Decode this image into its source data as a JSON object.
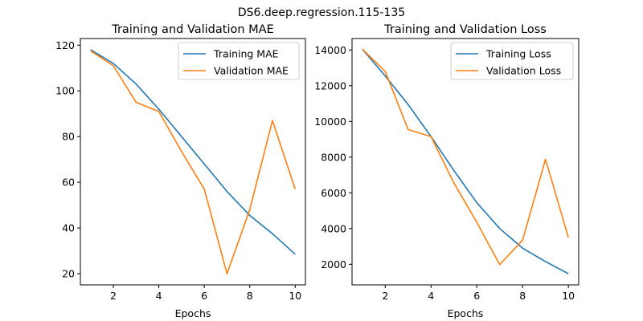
{
  "figure": {
    "suptitle": "DS6.deep.regression.115-135"
  },
  "colors": {
    "training": "#1f77b4",
    "validation": "#ff7f0e"
  },
  "chart_data": [
    {
      "type": "line",
      "title": "Training and Validation MAE",
      "xlabel": "Epochs",
      "ylabel": "",
      "x": [
        1,
        2,
        3,
        4,
        5,
        6,
        7,
        8,
        9,
        10
      ],
      "xlim": [
        0.55,
        10.45
      ],
      "ylim": [
        15.1,
        122.9
      ],
      "xticks": [
        2,
        4,
        6,
        8,
        10
      ],
      "yticks": [
        20,
        40,
        60,
        80,
        100,
        120
      ],
      "legend": "top-right",
      "grid": false,
      "series": [
        {
          "name": "Training MAE",
          "values": [
            118,
            112,
            103,
            92,
            80,
            68,
            56,
            45.5,
            37.5,
            28.5
          ]
        },
        {
          "name": "Validation MAE",
          "values": [
            117.5,
            111,
            95,
            91,
            73.5,
            57,
            20,
            48,
            87,
            57
          ]
        }
      ]
    },
    {
      "type": "line",
      "title": "Training and Validation Loss",
      "xlabel": "Epochs",
      "ylabel": "",
      "x": [
        1,
        2,
        3,
        4,
        5,
        6,
        7,
        8,
        9,
        10
      ],
      "xlim": [
        0.55,
        10.45
      ],
      "ylim": [
        845,
        14645
      ],
      "xticks": [
        2,
        4,
        6,
        8,
        10
      ],
      "yticks": [
        2000,
        4000,
        6000,
        8000,
        10000,
        12000,
        14000
      ],
      "legend": "top-right",
      "grid": false,
      "series": [
        {
          "name": "Training Loss",
          "values": [
            14050,
            12550,
            10950,
            9150,
            7250,
            5450,
            4000,
            2900,
            2150,
            1470
          ]
        },
        {
          "name": "Validation Loss",
          "values": [
            14050,
            12800,
            9550,
            9150,
            6550,
            4350,
            1980,
            3350,
            7880,
            3500
          ]
        }
      ]
    }
  ]
}
